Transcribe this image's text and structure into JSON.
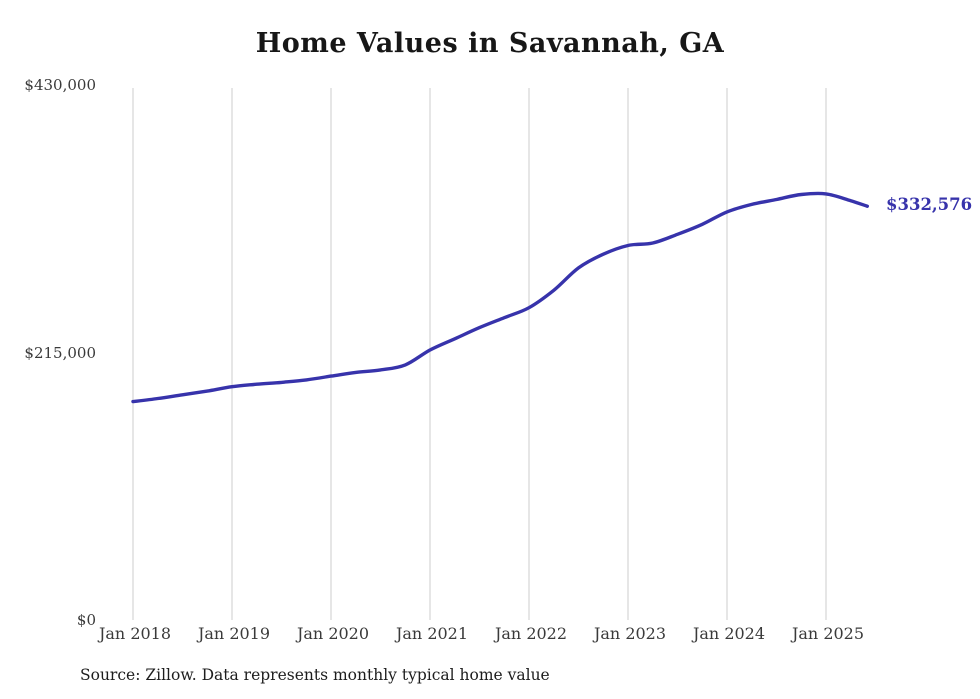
{
  "title": "Home Values in Savannah, GA",
  "source_note": "Source: Zillow. Data represents monthly typical home value",
  "colors": {
    "line": "#3733ab",
    "grid": "#cccccc",
    "text": "#3a3a3a",
    "title_text": "#171717"
  },
  "chart_data": {
    "type": "line",
    "title": "Home Values in Savannah, GA",
    "xlabel": "",
    "ylabel": "",
    "ylim": [
      0,
      430000
    ],
    "grid": "vertical-only",
    "legend": "none",
    "yticks": [
      {
        "value": 0,
        "label": "$0"
      },
      {
        "value": 215000,
        "label": "$215,000"
      },
      {
        "value": 430000,
        "label": "$430,000"
      }
    ],
    "xticks": [
      {
        "month_index": 0,
        "label": "Jan 2018"
      },
      {
        "month_index": 12,
        "label": "Jan 2019"
      },
      {
        "month_index": 24,
        "label": "Jan 2020"
      },
      {
        "month_index": 36,
        "label": "Jan 2021"
      },
      {
        "month_index": 48,
        "label": "Jan 2022"
      },
      {
        "month_index": 60,
        "label": "Jan 2023"
      },
      {
        "month_index": 72,
        "label": "Jan 2024"
      },
      {
        "month_index": 84,
        "label": "Jan 2025"
      }
    ],
    "series": [
      {
        "name": "Monthly typical home value",
        "x_unit": "months since Jan 2018",
        "x": [
          0,
          3,
          6,
          9,
          12,
          15,
          18,
          21,
          24,
          27,
          30,
          33,
          36,
          39,
          42,
          45,
          48,
          51,
          54,
          57,
          60,
          63,
          66,
          69,
          72,
          75,
          78,
          81,
          84,
          87,
          89
        ],
        "values": [
          175500,
          178000,
          181000,
          184000,
          187500,
          189500,
          191000,
          193000,
          196000,
          199000,
          201000,
          205000,
          217000,
          226000,
          235000,
          243000,
          251000,
          265000,
          283000,
          294000,
          301000,
          303000,
          310000,
          318000,
          328000,
          334000,
          338000,
          342000,
          342500,
          337000,
          332576
        ]
      }
    ],
    "annotation": {
      "text": "$332,576",
      "value": 332576,
      "position": "line-end-right"
    }
  }
}
